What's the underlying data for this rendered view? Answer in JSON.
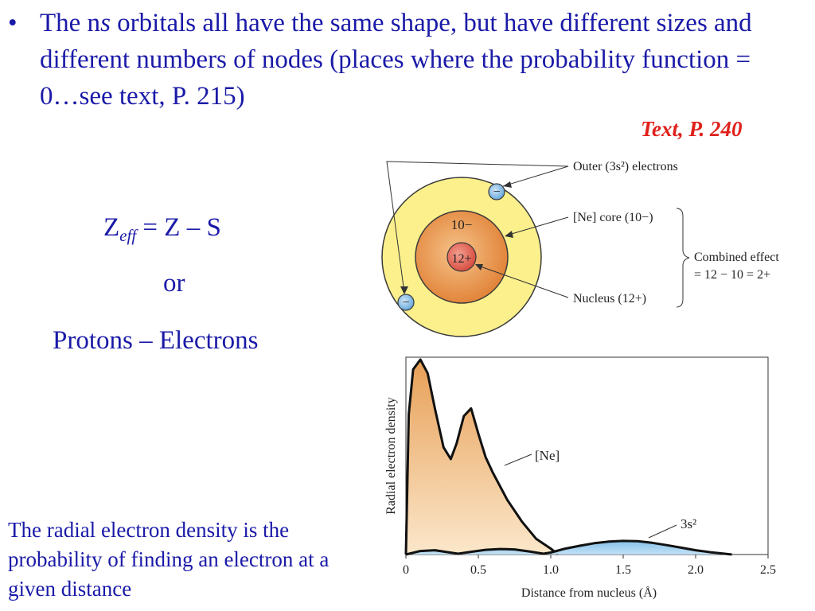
{
  "bullet": {
    "glyph": "•",
    "text_before": "The n",
    "text_italic": "s",
    "text_after": " orbitals all have the same shape, but have different sizes and different numbers of nodes (places where the probability function = 0…see text, P. 215)"
  },
  "reference": "Text, P. 240",
  "equation": {
    "z": "Z",
    "sub": "eff",
    "rest": " = Z – S",
    "or": "or",
    "alt": "Protons – Electrons"
  },
  "caption": "The radial electron density is the probability of finding an electron at a given distance",
  "atom_diagram": {
    "core_charge": "10−",
    "nucleus_charge": "12+",
    "electron_symbol": "−",
    "label_outer": "Outer (3s²) electrons",
    "label_core": "[Ne] core (10−)",
    "label_nucleus": "Nucleus (12+)",
    "label_combined_1": "Combined effect",
    "label_combined_2": "= 12 − 10 = 2+",
    "colors": {
      "outer_shell": "#fbf08c",
      "core": "#e8944a",
      "nucleus": "#e26a5c",
      "electron": "#8dc2ea"
    }
  },
  "chart_data": {
    "type": "area",
    "xlabel": "Distance from nucleus (Å)",
    "ylabel": "Radial electron density",
    "xlim": [
      0,
      2.5
    ],
    "ylim": [
      0,
      1
    ],
    "x_ticks": [
      "0",
      "0.5",
      "1.0",
      "1.5",
      "2.0",
      "2.5"
    ],
    "series": [
      {
        "name": "[Ne]",
        "color": "#e8a358",
        "x": [
          0,
          0.02,
          0.05,
          0.1,
          0.15,
          0.2,
          0.26,
          0.31,
          0.35,
          0.4,
          0.45,
          0.5,
          0.55,
          0.6,
          0.7,
          0.8,
          0.9,
          1.0,
          1.05
        ],
        "y": [
          0,
          0.72,
          0.95,
          1.0,
          0.93,
          0.75,
          0.55,
          0.49,
          0.57,
          0.71,
          0.75,
          0.62,
          0.5,
          0.42,
          0.28,
          0.17,
          0.08,
          0.03,
          0
        ]
      },
      {
        "name": "3s²",
        "color": "#7fbde8",
        "x": [
          0,
          0.1,
          0.2,
          0.29,
          0.36,
          0.45,
          0.55,
          0.65,
          0.75,
          0.85,
          0.95,
          1.0,
          1.1,
          1.2,
          1.3,
          1.4,
          1.5,
          1.6,
          1.7,
          1.8,
          1.9,
          2.0,
          2.1,
          2.2,
          2.25
        ],
        "y": [
          0,
          0.018,
          0.022,
          0.012,
          0.004,
          0.014,
          0.024,
          0.028,
          0.026,
          0.016,
          0.004,
          0.01,
          0.03,
          0.045,
          0.058,
          0.066,
          0.07,
          0.068,
          0.06,
          0.048,
          0.035,
          0.022,
          0.012,
          0.004,
          0
        ]
      }
    ],
    "annotations": [
      "[Ne]",
      "3s²"
    ]
  }
}
